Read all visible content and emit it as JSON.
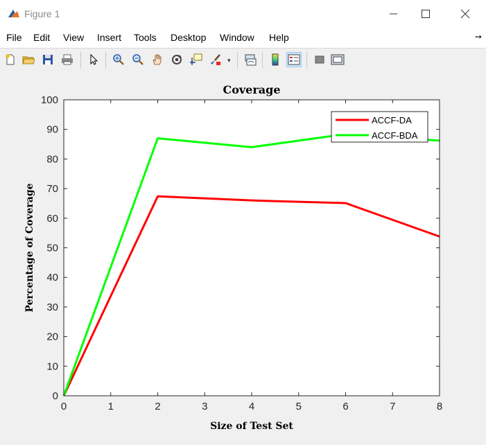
{
  "window": {
    "title": "Figure 1",
    "icon": "matlab-icon",
    "controls": [
      "minimize-icon",
      "maximize-icon",
      "close-icon"
    ]
  },
  "menu": {
    "items": [
      "File",
      "Edit",
      "View",
      "Insert",
      "Tools",
      "Desktop",
      "Window",
      "Help"
    ],
    "dock_icon": "dock-arrow-icon"
  },
  "toolbar": {
    "tools": [
      "new-figure-icon",
      "open-file-icon",
      "save-icon",
      "print-icon",
      "pointer-icon",
      "zoom-in-icon",
      "zoom-out-icon",
      "pan-hand-icon",
      "rotate-3d-icon",
      "data-cursor-icon",
      "brush-icon",
      "link-plot-icon",
      "colorbar-icon",
      "legend-icon",
      "hide-plot-tools-icon",
      "show-plot-tools-icon"
    ]
  },
  "chart_data": {
    "type": "line",
    "title": "Coverage",
    "xlabel": "Size of Test Set",
    "ylabel": "Percentage of Coverage",
    "xlim": [
      0,
      8
    ],
    "ylim": [
      0,
      100
    ],
    "xticks": [
      "0",
      "1",
      "2",
      "3",
      "4",
      "5",
      "6",
      "7",
      "8"
    ],
    "yticks": [
      "0",
      "10",
      "20",
      "30",
      "40",
      "50",
      "60",
      "70",
      "80",
      "90",
      "100"
    ],
    "grid": false,
    "legend_position": "top-right",
    "series": [
      {
        "name": "ACCF-DA",
        "color": "#ff0000",
        "x": [
          0,
          2,
          4,
          6,
          8
        ],
        "y": [
          0,
          67.4,
          66.0,
          65.1,
          53.8
        ]
      },
      {
        "name": "ACCF-BDA",
        "color": "#00ff00",
        "x": [
          0,
          2,
          4,
          6,
          8
        ],
        "y": [
          0,
          87.0,
          84.0,
          88.4,
          86.2
        ]
      }
    ]
  }
}
